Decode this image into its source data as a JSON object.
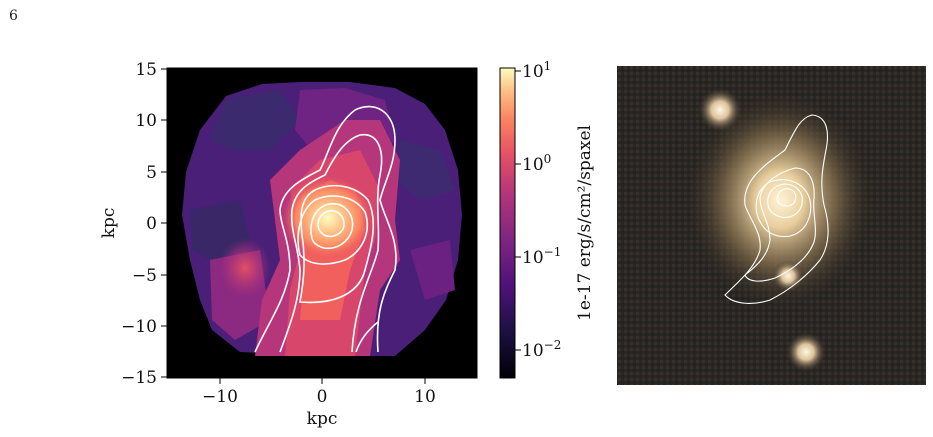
{
  "page": {
    "number": "6"
  },
  "map_panel": {
    "xlabel": "kpc",
    "ylabel": "kpc",
    "xticks": [
      "−10",
      "0",
      "10"
    ],
    "yticks": [
      "15",
      "10",
      "5",
      "0",
      "−5",
      "−10",
      "−15"
    ],
    "colorbar": {
      "label": "1e-17 erg/s/cm²/spaxel",
      "ticks": [
        {
          "base": "10",
          "exp": "1"
        },
        {
          "base": "10",
          "exp": "0"
        },
        {
          "base": "10",
          "exp": "−1"
        },
        {
          "base": "10",
          "exp": "−2"
        }
      ]
    }
  },
  "colors": {
    "background": "#000000",
    "contour": "#ffffff",
    "low_flux": "#3b2a6e",
    "high_flux": "#fcfdbf"
  }
}
